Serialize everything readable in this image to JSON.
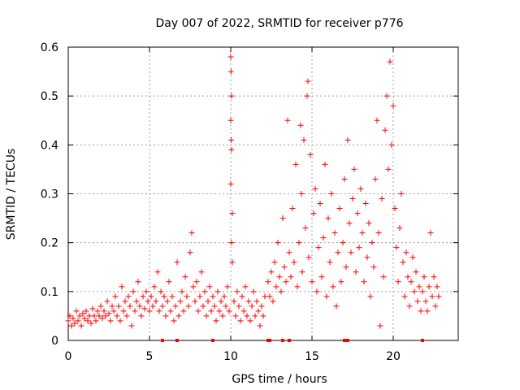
{
  "colors": {
    "series": "#ff0000",
    "axis": "#000000",
    "grid": "#a0a0a0",
    "background": "#ffffff"
  },
  "chart_data": {
    "type": "scatter",
    "title": "Day 007 of 2022, SRMTID for receiver p776",
    "xlabel": "GPS time / hours",
    "ylabel": "SRMTID / TECUs",
    "xlim": [
      0,
      24
    ],
    "ylim": [
      0,
      0.6
    ],
    "xticks": [
      0,
      5,
      10,
      15,
      20
    ],
    "yticks": [
      0,
      0.1,
      0.2,
      0.3,
      0.4,
      0.5,
      0.6
    ],
    "xtick_labels": [
      "0",
      "5",
      "10",
      "15",
      "20"
    ],
    "ytick_labels": [
      "0",
      "0.1",
      "0.2",
      "0.3",
      "0.4",
      "0.5",
      "0.6"
    ],
    "grid": true,
    "marker": "+",
    "series": [
      {
        "name": "SRMTID",
        "points": [
          [
            0.0,
            0.04
          ],
          [
            0.1,
            0.05
          ],
          [
            0.2,
            0.03
          ],
          [
            0.3,
            0.045
          ],
          [
            0.4,
            0.035
          ],
          [
            0.5,
            0.06
          ],
          [
            0.6,
            0.04
          ],
          [
            0.7,
            0.05
          ],
          [
            0.8,
            0.03
          ],
          [
            0.9,
            0.055
          ],
          [
            1.0,
            0.045
          ],
          [
            1.1,
            0.06
          ],
          [
            1.2,
            0.04
          ],
          [
            1.3,
            0.05
          ],
          [
            1.4,
            0.035
          ],
          [
            1.5,
            0.065
          ],
          [
            1.6,
            0.05
          ],
          [
            1.7,
            0.04
          ],
          [
            1.8,
            0.06
          ],
          [
            1.9,
            0.05
          ],
          [
            2.0,
            0.07
          ],
          [
            2.1,
            0.045
          ],
          [
            2.2,
            0.06
          ],
          [
            2.3,
            0.05
          ],
          [
            2.4,
            0.08
          ],
          [
            2.5,
            0.055
          ],
          [
            2.6,
            0.04
          ],
          [
            2.7,
            0.07
          ],
          [
            2.8,
            0.06
          ],
          [
            2.9,
            0.09
          ],
          [
            3.0,
            0.05
          ],
          [
            3.1,
            0.07
          ],
          [
            3.2,
            0.04
          ],
          [
            3.3,
            0.11
          ],
          [
            3.4,
            0.06
          ],
          [
            3.5,
            0.08
          ],
          [
            3.6,
            0.05
          ],
          [
            3.7,
            0.09
          ],
          [
            3.8,
            0.07
          ],
          [
            3.9,
            0.03
          ],
          [
            4.0,
            0.1
          ],
          [
            4.1,
            0.06
          ],
          [
            4.2,
            0.08
          ],
          [
            4.3,
            0.12
          ],
          [
            4.4,
            0.07
          ],
          [
            4.5,
            0.05
          ],
          [
            4.6,
            0.09
          ],
          [
            4.7,
            0.065
          ],
          [
            4.8,
            0.1
          ],
          [
            4.9,
            0.08
          ],
          [
            5.0,
            0.06
          ],
          [
            5.1,
            0.09
          ],
          [
            5.2,
            0.07
          ],
          [
            5.3,
            0.11
          ],
          [
            5.4,
            0.08
          ],
          [
            5.5,
            0.14
          ],
          [
            5.6,
            0.06
          ],
          [
            5.7,
            0.1
          ],
          [
            5.8,
            0.07
          ],
          [
            5.9,
            0.09
          ],
          [
            6.0,
            0.05
          ],
          [
            6.1,
            0.08
          ],
          [
            6.2,
            0.12
          ],
          [
            6.3,
            0.06
          ],
          [
            6.4,
            0.09
          ],
          [
            6.5,
            0.04
          ],
          [
            6.6,
            0.07
          ],
          [
            6.7,
            0.16
          ],
          [
            6.8,
            0.05
          ],
          [
            6.9,
            0.08
          ],
          [
            7.0,
            0.1
          ],
          [
            7.1,
            0.06
          ],
          [
            7.2,
            0.13
          ],
          [
            7.3,
            0.09
          ],
          [
            7.4,
            0.07
          ],
          [
            7.5,
            0.18
          ],
          [
            7.6,
            0.22
          ],
          [
            7.7,
            0.11
          ],
          [
            7.8,
            0.08
          ],
          [
            7.9,
            0.12
          ],
          [
            8.0,
            0.06
          ],
          [
            8.1,
            0.09
          ],
          [
            8.2,
            0.14
          ],
          [
            8.3,
            0.07
          ],
          [
            8.4,
            0.1
          ],
          [
            8.5,
            0.05
          ],
          [
            8.6,
            0.08
          ],
          [
            8.7,
            0.11
          ],
          [
            8.8,
            0.06
          ],
          [
            8.9,
            0.09
          ],
          [
            9.0,
            0.07
          ],
          [
            9.1,
            0.04
          ],
          [
            9.2,
            0.1
          ],
          [
            9.3,
            0.06
          ],
          [
            9.4,
            0.08
          ],
          [
            9.5,
            0.05
          ],
          [
            9.6,
            0.09
          ],
          [
            9.7,
            0.07
          ],
          [
            9.8,
            0.11
          ],
          [
            9.9,
            0.06
          ],
          [
            10.0,
            0.58
          ],
          [
            10.02,
            0.55
          ],
          [
            10.05,
            0.5
          ],
          [
            10.0,
            0.45
          ],
          [
            10.03,
            0.41
          ],
          [
            10.05,
            0.39
          ],
          [
            10.0,
            0.32
          ],
          [
            10.1,
            0.26
          ],
          [
            10.05,
            0.2
          ],
          [
            10.1,
            0.16
          ],
          [
            10.2,
            0.08
          ],
          [
            10.3,
            0.05
          ],
          [
            10.4,
            0.1
          ],
          [
            10.5,
            0.07
          ],
          [
            10.6,
            0.04
          ],
          [
            10.7,
            0.09
          ],
          [
            10.8,
            0.06
          ],
          [
            10.9,
            0.11
          ],
          [
            11.0,
            0.05
          ],
          [
            11.1,
            0.08
          ],
          [
            11.2,
            0.04
          ],
          [
            11.3,
            0.07
          ],
          [
            11.4,
            0.1
          ],
          [
            11.5,
            0.05
          ],
          [
            11.6,
            0.08
          ],
          [
            11.7,
            0.06
          ],
          [
            11.8,
            0.03
          ],
          [
            11.9,
            0.07
          ],
          [
            12.0,
            0.05
          ],
          [
            12.1,
            0.09
          ],
          [
            12.3,
            0.12
          ],
          [
            12.4,
            0.09
          ],
          [
            12.5,
            0.14
          ],
          [
            12.6,
            0.08
          ],
          [
            12.7,
            0.16
          ],
          [
            12.8,
            0.11
          ],
          [
            12.9,
            0.2
          ],
          [
            13.0,
            0.13
          ],
          [
            13.1,
            0.1
          ],
          [
            13.2,
            0.25
          ],
          [
            13.3,
            0.15
          ],
          [
            13.4,
            0.12
          ],
          [
            13.5,
            0.45
          ],
          [
            13.6,
            0.18
          ],
          [
            13.7,
            0.13
          ],
          [
            13.8,
            0.27
          ],
          [
            13.9,
            0.16
          ],
          [
            14.0,
            0.36
          ],
          [
            14.1,
            0.11
          ],
          [
            14.2,
            0.2
          ],
          [
            14.3,
            0.44
          ],
          [
            14.35,
            0.3
          ],
          [
            14.4,
            0.14
          ],
          [
            14.5,
            0.41
          ],
          [
            14.6,
            0.23
          ],
          [
            14.7,
            0.5
          ],
          [
            14.75,
            0.53
          ],
          [
            14.8,
            0.17
          ],
          [
            14.9,
            0.38
          ],
          [
            15.0,
            0.12
          ],
          [
            15.1,
            0.26
          ],
          [
            15.2,
            0.31
          ],
          [
            15.3,
            0.1
          ],
          [
            15.4,
            0.19
          ],
          [
            15.5,
            0.28
          ],
          [
            15.6,
            0.13
          ],
          [
            15.7,
            0.21
          ],
          [
            15.8,
            0.36
          ],
          [
            15.9,
            0.09
          ],
          [
            16.0,
            0.25
          ],
          [
            16.1,
            0.16
          ],
          [
            16.2,
            0.3
          ],
          [
            16.3,
            0.11
          ],
          [
            16.4,
            0.22
          ],
          [
            16.5,
            0.07
          ],
          [
            16.6,
            0.18
          ],
          [
            16.7,
            0.27
          ],
          [
            16.8,
            0.12
          ],
          [
            16.9,
            0.2
          ],
          [
            17.0,
            0.33
          ],
          [
            17.1,
            0.15
          ],
          [
            17.2,
            0.41
          ],
          [
            17.3,
            0.24
          ],
          [
            17.4,
            0.18
          ],
          [
            17.5,
            0.29
          ],
          [
            17.6,
            0.35
          ],
          [
            17.7,
            0.14
          ],
          [
            17.8,
            0.26
          ],
          [
            17.9,
            0.19
          ],
          [
            18.0,
            0.31
          ],
          [
            18.1,
            0.22
          ],
          [
            18.2,
            0.12
          ],
          [
            18.3,
            0.28
          ],
          [
            18.4,
            0.17
          ],
          [
            18.5,
            0.24
          ],
          [
            18.6,
            0.09
          ],
          [
            18.7,
            0.2
          ],
          [
            18.8,
            0.15
          ],
          [
            18.9,
            0.33
          ],
          [
            19.0,
            0.45
          ],
          [
            19.1,
            0.22
          ],
          [
            19.2,
            0.03
          ],
          [
            19.3,
            0.29
          ],
          [
            19.4,
            0.13
          ],
          [
            19.5,
            0.43
          ],
          [
            19.6,
            0.5
          ],
          [
            19.7,
            0.35
          ],
          [
            19.8,
            0.57
          ],
          [
            19.9,
            0.4
          ],
          [
            20.0,
            0.48
          ],
          [
            20.1,
            0.27
          ],
          [
            20.2,
            0.19
          ],
          [
            20.3,
            0.12
          ],
          [
            20.4,
            0.23
          ],
          [
            20.5,
            0.3
          ],
          [
            20.6,
            0.16
          ],
          [
            20.7,
            0.09
          ],
          [
            20.8,
            0.18
          ],
          [
            20.9,
            0.13
          ],
          [
            21.0,
            0.07
          ],
          [
            21.1,
            0.12
          ],
          [
            21.2,
            0.17
          ],
          [
            21.3,
            0.1
          ],
          [
            21.4,
            0.14
          ],
          [
            21.5,
            0.08
          ],
          [
            21.6,
            0.11
          ],
          [
            21.7,
            0.06
          ],
          [
            21.8,
            0.1
          ],
          [
            21.9,
            0.13
          ],
          [
            22.0,
            0.08
          ],
          [
            22.1,
            0.06
          ],
          [
            22.2,
            0.11
          ],
          [
            22.3,
            0.22
          ],
          [
            22.4,
            0.09
          ],
          [
            22.5,
            0.13
          ],
          [
            22.6,
            0.07
          ],
          [
            22.7,
            0.11
          ],
          [
            22.8,
            0.09
          ]
        ]
      }
    ],
    "gap_markers_x": [
      5.8,
      6.7,
      8.9,
      12.3,
      12.4,
      13.2,
      13.6,
      17.0,
      17.2,
      21.8
    ]
  }
}
